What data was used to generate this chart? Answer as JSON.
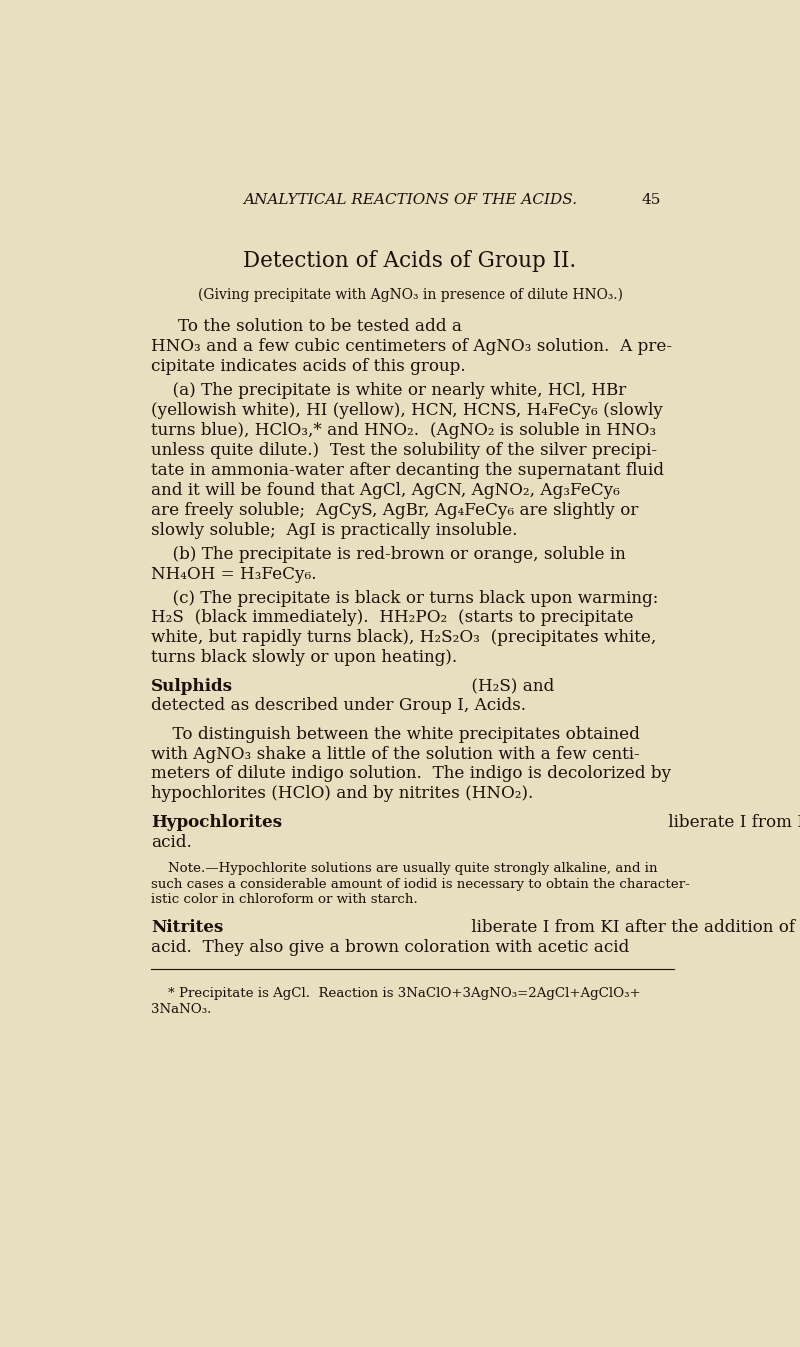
{
  "bg_color": "#e8dfc0",
  "text_color": "#1a1008",
  "page_number": "45",
  "header": "ANALYTICAL REACTIONS OF THE ACIDS.",
  "title": "Detection of Acids of Group II.",
  "subtitle": "(Giving precipitate with AgNO₃ in presence of dilute HNO₃.)",
  "lm": 0.082,
  "rm": 0.925,
  "fs_header": 11,
  "fs_title": 15.5,
  "fs_subtitle": 10,
  "fs_body": 12.1,
  "fs_small": 9.6,
  "ls_body": 0.0192,
  "ls_small_ratio": 0.793
}
